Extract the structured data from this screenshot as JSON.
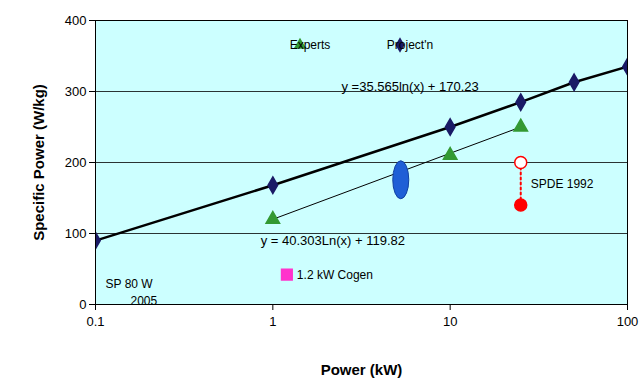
{
  "chart_data": {
    "type": "line",
    "xlabel": "Power (kW)",
    "ylabel": "Specific Power (W/kg)",
    "log": "x",
    "xlim": [
      0.1,
      100
    ],
    "xticks": [
      0.1,
      1,
      10,
      100
    ],
    "ylim": [
      0,
      400
    ],
    "yticks": [
      0,
      100,
      200,
      300,
      400
    ],
    "grid": true,
    "legend": "top",
    "series": [
      {
        "name": "Experts",
        "type": "scatter",
        "marker": "triangle",
        "color": "#339933",
        "x": [
          1,
          10,
          25
        ],
        "values": [
          120,
          210,
          250
        ],
        "trendline": {
          "x": [
            1,
            25
          ],
          "values": [
            120,
            250
          ],
          "color": "#000000",
          "line_style": "solid"
        },
        "equation": "y = 40.303Ln(x) + 119.82"
      },
      {
        "name": "Project'n",
        "type": "line",
        "marker": "diamond",
        "color": "#1a1a66",
        "line_style": "solid",
        "x": [
          0.1,
          1,
          10,
          25,
          50,
          100
        ],
        "values": [
          90,
          168,
          250,
          285,
          313,
          335
        ],
        "equation": "y =35.565ln(x) + 170.23"
      }
    ],
    "annotations": [
      {
        "type": "range",
        "label": "SPDE 1992",
        "x": [
          25,
          25
        ],
        "values": [
          200,
          140
        ],
        "marker": "circle",
        "color": "#ff0000",
        "line_style": "dotted"
      },
      {
        "type": "point",
        "label": "1.2 kW Cogen",
        "x": [
          1.2
        ],
        "values": [
          42
        ],
        "marker": "square",
        "color": "#ff33cc"
      },
      {
        "type": "point",
        "x": [
          5.3
        ],
        "values": [
          175
        ],
        "marker": "ellipse",
        "color": "#1f5fd6"
      },
      {
        "type": "text",
        "label": [
          "SP 80 W",
          "2005"
        ]
      }
    ]
  }
}
